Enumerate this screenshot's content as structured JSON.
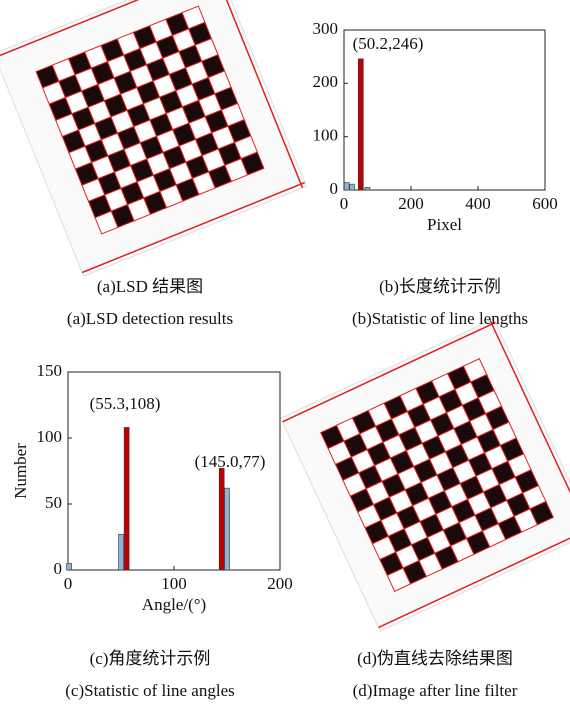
{
  "chart_data": [
    {
      "type": "bar",
      "xlabel": "Pixel",
      "xlim": [
        0,
        600
      ],
      "xticks": [
        0,
        200,
        400,
        600
      ],
      "ylim": [
        0,
        300
      ],
      "yticks": [
        0,
        100,
        200,
        300
      ],
      "series": [
        {
          "color": "#c00000",
          "x": [
            50.2
          ],
          "values": [
            246
          ]
        },
        {
          "color": "#8db4d8",
          "x": [
            8,
            24,
            70
          ],
          "values": [
            14,
            11,
            5
          ]
        }
      ],
      "annotations": [
        "(50.2,246)"
      ]
    },
    {
      "type": "bar",
      "xlabel": "Angle/(°)",
      "ylabel": "Number",
      "xlim": [
        0,
        200
      ],
      "xticks": [
        0,
        100,
        200
      ],
      "ylim": [
        0,
        150
      ],
      "yticks": [
        0,
        50,
        100,
        150
      ],
      "series": [
        {
          "color": "#c00000",
          "x": [
            55.3,
            145.0
          ],
          "values": [
            108,
            77
          ]
        },
        {
          "color": "#8db4d8",
          "x": [
            1,
            50,
            150
          ],
          "values": [
            5,
            27,
            62
          ]
        }
      ],
      "annotations": [
        "(55.3,108)",
        "(145.0,77)"
      ]
    }
  ],
  "captions": [
    {
      "zh": "(a)LSD 结果图",
      "en": "(a)LSD detection results"
    },
    {
      "zh": "(b)长度统计示例",
      "en": "(b)Statistic of line lengths"
    },
    {
      "zh": "(c)角度统计示例",
      "en": "(c)Statistic of line angles"
    },
    {
      "zh": "(d)伪直线去除结果图",
      "en": "(d)Image after line filter"
    }
  ]
}
